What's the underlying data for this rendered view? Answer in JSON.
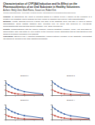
{
  "header": {
    "title": "Characterization of CYP3A4 Induction and Its Effect on the Pharmacokinetics of an Oral Substrate in Healthy Volunteers",
    "authors": "Authors: Emily Chen, Mark Rivera, Susan Lee, Robert Kim",
    "affiliation": "Clinical Pharmacology, University Medical Center, Department of Pharmaceutical Sciences"
  },
  "sections": [
    {
      "heading": "Purpose:",
      "text": "To characterize the effect of repeated dosing of a strong CYP3A4 inducer on the exposure of a sensitive oral substrate and to describe the time course of induction and recovery after discontinuation."
    },
    {
      "heading": "Methods:",
      "text": "Healthy subjects received a single oral dose of the substrate alone and after 14 days of inducer administration. Serial plasma samples were collected over 24 hours and analyzed by LC-MS/MS. Noncompartmental analysis was used to estimate AUC, Cmax and half-life."
    },
    {
      "heading": "Results:",
      "text": "Coadministration with the inducer markedly reduced substrate exposure. Mean AUC decreased by approximately 75% and Cmax by 60% relative to the reference period. Elimination half-life was shortened and apparent clearance increased in all subjects."
    },
    {
      "heading": "Conclusion:",
      "text": "Strong CYP3A4 induction substantially lowers systemic exposure of the substrate; concomitant use should be avoided or the dose adjusted accordingly."
    }
  ],
  "chart_data": [
    {
      "type": "line",
      "title": "Subject 1",
      "x": [
        0,
        2,
        4,
        6,
        8,
        12,
        24
      ],
      "xlim": [
        0,
        24
      ],
      "xticks": [
        0,
        6,
        12,
        18,
        24
      ],
      "ylim": [
        0,
        120
      ],
      "yticks": [
        0,
        40,
        80,
        120
      ],
      "tick_labels": false,
      "grid": false,
      "series": [
        {
          "color": "#1f4e9c",
          "values": [
            100,
            82,
            66,
            53,
            43,
            28,
            8
          ]
        },
        {
          "color": "#c0392b",
          "values": [
            40,
            28,
            19,
            13,
            9,
            4,
            1
          ]
        }
      ]
    },
    {
      "type": "line",
      "title": "Subject 2",
      "x": [
        0,
        2,
        4,
        6,
        8,
        12,
        24
      ],
      "xlim": [
        0,
        24
      ],
      "xticks": [
        0,
        6,
        12,
        18,
        24
      ],
      "ylim": [
        0,
        120
      ],
      "yticks": [
        0,
        40,
        80,
        120
      ],
      "tick_labels": false,
      "grid": false,
      "series": [
        {
          "color": "#1f4e9c",
          "values": [
            110,
            90,
            72,
            58,
            47,
            31,
            10
          ]
        },
        {
          "color": "#c0392b",
          "values": [
            45,
            31,
            21,
            14,
            10,
            5,
            1
          ]
        }
      ]
    },
    {
      "type": "line",
      "title": "Subject 3",
      "x": [
        0,
        2,
        4,
        6,
        8,
        12,
        24
      ],
      "xlim": [
        0,
        24
      ],
      "xticks": [
        0,
        6,
        12,
        18,
        24
      ],
      "ylim": [
        0,
        120
      ],
      "yticks": [
        0,
        40,
        80,
        120
      ],
      "tick_labels": false,
      "grid": false,
      "series": [
        {
          "color": "#1f4e9c",
          "values": [
            95,
            79,
            65,
            54,
            45,
            31,
            11
          ]
        },
        {
          "color": "#c0392b",
          "values": [
            38,
            27,
            19,
            14,
            10,
            5,
            1
          ]
        }
      ]
    },
    {
      "type": "line",
      "title": "Subject 4",
      "x": [
        0,
        2,
        4,
        6,
        8,
        12,
        24
      ],
      "xlim": [
        0,
        24
      ],
      "xticks": [
        0,
        6,
        12,
        18,
        24
      ],
      "ylim": [
        0,
        120
      ],
      "yticks": [
        0,
        40,
        80,
        120
      ],
      "tick_labels": false,
      "grid": false,
      "series": [
        {
          "color": "#1f4e9c",
          "values": [
            105,
            85,
            68,
            55,
            44,
            29,
            9
          ]
        },
        {
          "color": "#c0392b",
          "values": [
            42,
            30,
            21,
            15,
            11,
            6,
            2
          ]
        }
      ]
    }
  ]
}
